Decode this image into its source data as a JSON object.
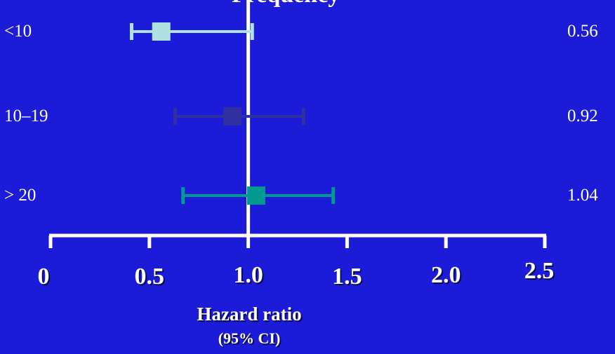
{
  "title_fragment": "Frequency",
  "chart_data": {
    "type": "forest",
    "xlabel": "Hazard ratio",
    "xlabel_sub": "(95% CI)",
    "xlim": [
      0,
      2.5
    ],
    "x_ticks": [
      0,
      0.5,
      1.0,
      1.5,
      2.0,
      2.5
    ],
    "x_tick_labels": [
      "0",
      "0.5",
      "1.0",
      "1.5",
      "2.0",
      "2.5"
    ],
    "reference_line": 1.0,
    "rows": [
      {
        "label": "<10",
        "hr": 0.56,
        "hr_label": "0.56",
        "ci_low": 0.41,
        "ci_high": 1.02,
        "color": "#b0e0e0"
      },
      {
        "label": "10–19",
        "hr": 0.92,
        "hr_label": "0.92",
        "ci_low": 0.63,
        "ci_high": 1.28,
        "color": "#3030a0"
      },
      {
        "label": "> 20",
        "hr": 1.04,
        "hr_label": "1.04",
        "ci_low": 0.67,
        "ci_high": 1.43,
        "color": "#009a90"
      }
    ],
    "grid": false,
    "legend": "none"
  }
}
